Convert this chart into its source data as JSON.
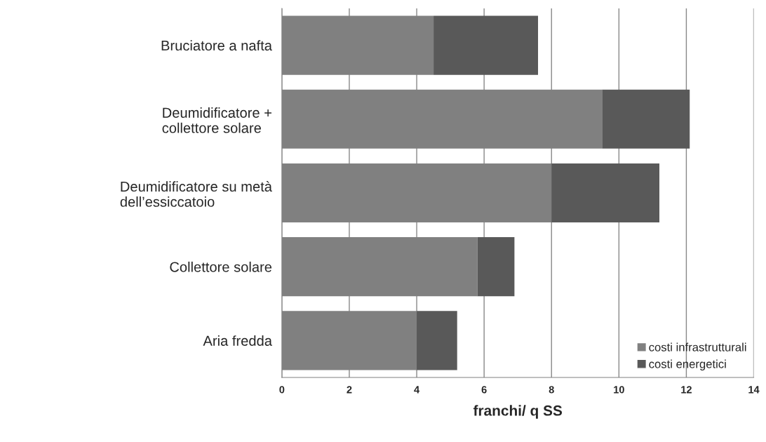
{
  "chart_data": {
    "type": "bar",
    "orientation": "horizontal",
    "stacked": true,
    "xlabel": "franchi/ q SS",
    "categories": [
      "Bruciatore a nafta",
      "Deumidificatore +\ncollettore solare",
      "Deumidificatore su metà\ndell’essiccatoio",
      "Collettore solare",
      "Aria fredda"
    ],
    "series": [
      {
        "name": "costi infrastrutturali",
        "color": "#808080",
        "values": [
          4.5,
          9.5,
          8.0,
          5.8,
          4.0
        ]
      },
      {
        "name": "costi energetici",
        "color": "#595959",
        "values": [
          3.1,
          2.6,
          3.2,
          1.1,
          1.2
        ]
      }
    ],
    "xlim": [
      0,
      14
    ],
    "xticks": [
      0,
      2,
      4,
      6,
      8,
      10,
      12,
      14
    ],
    "grid": "x",
    "legend": "bottom right"
  }
}
